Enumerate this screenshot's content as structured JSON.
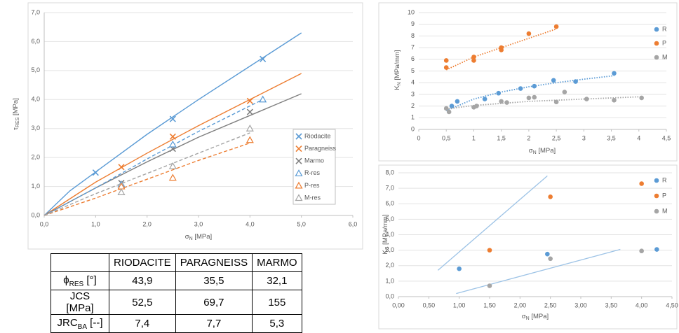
{
  "chart_data": [
    {
      "type": "scatter",
      "xlabel": {
        "text": "σ",
        "sub": "N",
        "unit": " [MPa]"
      },
      "ylabel": {
        "text": "τ",
        "sub": "RES",
        "unit": " [MPa]"
      },
      "xlim": [
        0,
        6
      ],
      "ylim": [
        0,
        7
      ],
      "grid": true,
      "legend": "box",
      "xticks": [
        {
          "value": 0,
          "label": "0,0"
        },
        {
          "value": 1,
          "label": "1,0"
        },
        {
          "value": 2,
          "label": "2,0"
        },
        {
          "value": 3,
          "label": "3,0"
        },
        {
          "value": 4,
          "label": "4,0"
        },
        {
          "value": 5,
          "label": "5,0"
        },
        {
          "value": 6,
          "label": "6,0"
        }
      ],
      "yticks": [
        {
          "value": 0,
          "label": "0,0"
        },
        {
          "value": 1,
          "label": "1,0"
        },
        {
          "value": 2,
          "label": "2,0"
        },
        {
          "value": 3,
          "label": "3,0"
        },
        {
          "value": 4,
          "label": "4,0"
        },
        {
          "value": 5,
          "label": "5,0"
        },
        {
          "value": 6,
          "label": "6,0"
        },
        {
          "value": 7,
          "label": "7,0"
        }
      ],
      "series": [
        {
          "name": "Riodacite",
          "color": "#5b9bd5",
          "marker": "cross",
          "x": [
            1.0,
            2.5,
            4.25
          ],
          "values": [
            1.48,
            3.33,
            5.4
          ],
          "fit": {
            "dash": false,
            "x": [
              0,
              0.5,
              1,
              2,
              3,
              4,
              5
            ],
            "values": [
              0,
              0.85,
              1.5,
              2.8,
              4.0,
              5.15,
              6.3
            ]
          }
        },
        {
          "name": "Paragneiss",
          "color": "#ed7d31",
          "marker": "cross",
          "x": [
            1.5,
            2.5,
            4.0
          ],
          "values": [
            1.67,
            2.72,
            3.95
          ],
          "fit": {
            "dash": false,
            "x": [
              0,
              1,
              2,
              3,
              4,
              5
            ],
            "values": [
              0,
              1.15,
              2.15,
              3.1,
              4.0,
              4.9
            ]
          }
        },
        {
          "name": "Marmo",
          "color": "#7f7f7f",
          "marker": "cross",
          "x": [
            1.5,
            2.5,
            4.0
          ],
          "values": [
            1.12,
            2.3,
            3.57
          ],
          "fit": {
            "dash": false,
            "x": [
              0,
              1,
              2,
              3,
              4,
              5
            ],
            "values": [
              0,
              0.95,
              1.85,
              2.7,
              3.45,
              4.2
            ]
          }
        },
        {
          "name": "R-res",
          "color": "#5b9bd5",
          "marker": "triangle",
          "x": [
            1.5,
            2.5,
            4.25
          ],
          "values": [
            1.07,
            2.45,
            4.0
          ],
          "fit": {
            "dash": true,
            "x": [
              0,
              1,
              2,
              3,
              4.25
            ],
            "values": [
              0,
              0.95,
              1.95,
              2.9,
              4.0
            ]
          }
        },
        {
          "name": "P-res",
          "color": "#ed7d31",
          "marker": "triangle",
          "x": [
            1.5,
            2.5,
            4.0
          ],
          "values": [
            1.0,
            1.3,
            2.6
          ],
          "fit": {
            "dash": true,
            "x": [
              0,
              1,
              2,
              3,
              4
            ],
            "values": [
              0,
              0.6,
              1.25,
              1.9,
              2.5
            ]
          }
        },
        {
          "name": "M-res",
          "color": "#a5a5a5",
          "marker": "triangle",
          "x": [
            1.5,
            2.5,
            4.0
          ],
          "values": [
            0.8,
            1.7,
            3.0
          ],
          "fit": {
            "dash": true,
            "x": [
              0,
              1,
              2,
              3,
              4
            ],
            "values": [
              0,
              0.75,
              1.45,
              2.15,
              2.85
            ]
          }
        }
      ]
    },
    {
      "type": "scatter",
      "xlabel": {
        "text": "σ",
        "sub": "N",
        "unit": " [MPa]"
      },
      "ylabel": {
        "text": "K",
        "sub": "N",
        "unit": " [MPa/mm]"
      },
      "xlim": [
        0,
        4.5
      ],
      "ylim": [
        0,
        10
      ],
      "grid": true,
      "legend": "right",
      "xticks": [
        0,
        {
          "value": 0.5,
          "label": "0,5"
        },
        1,
        {
          "value": 1.5,
          "label": "1,5"
        },
        2,
        {
          "value": 2.5,
          "label": "2,5"
        },
        3,
        {
          "value": 3.5,
          "label": "3,5"
        },
        4,
        {
          "value": 4.5,
          "label": "4,5"
        }
      ],
      "yticks": [
        0,
        1,
        2,
        3,
        4,
        5,
        6,
        7,
        8,
        9,
        10
      ],
      "series": [
        {
          "name": "R",
          "color": "#5b9bd5",
          "marker": "circle",
          "x": [
            0.6,
            0.7,
            1.2,
            1.45,
            1.85,
            2.1,
            2.45,
            2.85,
            3.55
          ],
          "values": [
            2.0,
            2.4,
            2.6,
            3.1,
            3.5,
            3.7,
            4.2,
            4.1,
            4.8
          ],
          "fit": {
            "dot": true,
            "x": [
              0.5,
              1,
              1.5,
              2,
              2.5,
              3,
              3.55
            ],
            "values": [
              1.6,
              2.6,
              3.2,
              3.65,
              4.0,
              4.3,
              4.6
            ]
          }
        },
        {
          "name": "P",
          "color": "#ed7d31",
          "marker": "circle",
          "x": [
            0.5,
            0.5,
            1.0,
            1.0,
            1.5,
            1.5,
            2.0,
            2.5
          ],
          "values": [
            5.3,
            5.9,
            5.9,
            6.2,
            6.8,
            7.0,
            8.2,
            8.8
          ],
          "fit": {
            "dot": true,
            "x": [
              0.5,
              1,
              1.5,
              2,
              2.5
            ],
            "values": [
              5.1,
              6.2,
              7.0,
              7.8,
              8.6
            ]
          }
        },
        {
          "name": "M",
          "color": "#a5a5a5",
          "marker": "circle",
          "x": [
            0.5,
            0.55,
            1.0,
            1.05,
            1.5,
            1.6,
            2.0,
            2.1,
            2.5,
            2.65,
            3.05,
            3.55,
            4.05
          ],
          "values": [
            1.8,
            1.5,
            1.9,
            2.0,
            2.4,
            2.3,
            2.7,
            2.75,
            2.35,
            3.2,
            2.6,
            2.5,
            2.7
          ],
          "fit": {
            "dot": true,
            "x": [
              0.5,
              1,
              2,
              3,
              4.05
            ],
            "values": [
              1.75,
              2.05,
              2.4,
              2.6,
              2.8
            ]
          }
        }
      ]
    },
    {
      "type": "scatter",
      "xlabel": {
        "text": "σ",
        "sub": "N",
        "unit": " [MPa]"
      },
      "ylabel": {
        "text": "K",
        "sub": "S",
        "unit": " [MPa/mm]"
      },
      "xlim": [
        0,
        4.5
      ],
      "ylim": [
        0,
        8
      ],
      "grid": true,
      "legend": "right",
      "xticks": [
        {
          "value": 0,
          "label": "0,00"
        },
        {
          "value": 0.5,
          "label": "0,50"
        },
        {
          "value": 1,
          "label": "1,00"
        },
        {
          "value": 1.5,
          "label": "1,50"
        },
        {
          "value": 2,
          "label": "2,00"
        },
        {
          "value": 2.5,
          "label": "2,50"
        },
        {
          "value": 3,
          "label": "3,00"
        },
        {
          "value": 3.5,
          "label": "3,50"
        },
        {
          "value": 4,
          "label": "4,00"
        },
        {
          "value": 4.5,
          "label": "4,50"
        }
      ],
      "yticks": [
        {
          "value": 0,
          "label": "0,0"
        },
        {
          "value": 1,
          "label": "1,0"
        },
        {
          "value": 2,
          "label": "2,0"
        },
        {
          "value": 3,
          "label": "3,0"
        },
        {
          "value": 4,
          "label": "4,0"
        },
        {
          "value": 5,
          "label": "5,0"
        },
        {
          "value": 6,
          "label": "6,0"
        },
        {
          "value": 7,
          "label": "7,0"
        },
        {
          "value": 8,
          "label": "8,0"
        }
      ],
      "series": [
        {
          "name": "R",
          "color": "#5b9bd5",
          "marker": "circle",
          "x": [
            1.0,
            2.45,
            4.25
          ],
          "values": [
            1.8,
            2.75,
            3.05
          ]
        },
        {
          "name": "P",
          "color": "#ed7d31",
          "marker": "circle",
          "x": [
            1.5,
            2.5,
            4.0
          ],
          "values": [
            3.0,
            6.45,
            7.3
          ]
        },
        {
          "name": "M",
          "color": "#a5a5a5",
          "marker": "circle",
          "x": [
            1.5,
            2.5,
            4.0
          ],
          "values": [
            0.7,
            2.45,
            2.95
          ]
        }
      ],
      "lines": [
        {
          "color": "#9dc3e6",
          "x": [
            0.65,
            2.45
          ],
          "values": [
            1.7,
            7.8
          ]
        },
        {
          "color": "#9dc3e6",
          "x": [
            0.95,
            3.65
          ],
          "values": [
            0.2,
            3.05
          ]
        }
      ]
    }
  ],
  "table": {
    "columns": [
      "RIODACITE",
      "PARAGNEISS",
      "MARMO"
    ],
    "rows": [
      {
        "label": "ϕ",
        "sub": "RES",
        "unit": " [°]",
        "values": [
          "43,9",
          "35,5",
          "32,1"
        ]
      },
      {
        "label": "JCS [MPa]",
        "values": [
          "52,5",
          "69,7",
          "155"
        ]
      },
      {
        "label": "JRC",
        "sub": "BA",
        "unit": " [--]",
        "values": [
          "7,4",
          "7,7",
          "5,3"
        ]
      }
    ]
  }
}
